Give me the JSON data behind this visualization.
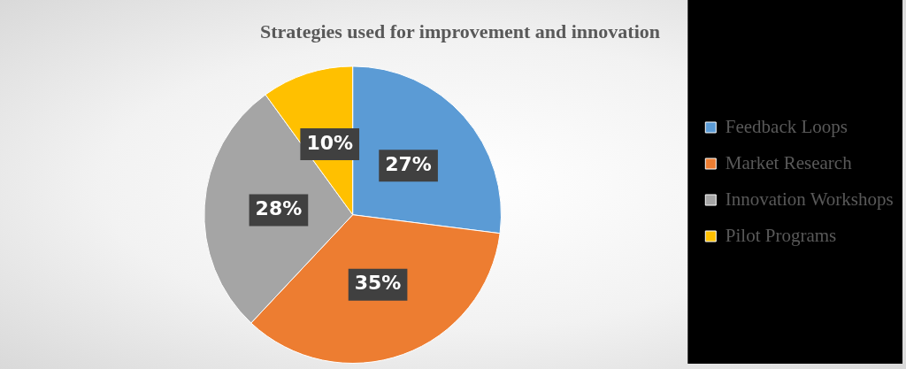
{
  "chart_data": {
    "type": "pie",
    "title": "Strategies used for improvement and innovation",
    "categories": [
      "Feedback Loops",
      "Market Research",
      "Innovation Workshops",
      "Pilot Programs"
    ],
    "values": [
      27,
      35,
      28,
      10
    ],
    "colors": [
      "#5b9bd5",
      "#ed7d31",
      "#a5a5a5",
      "#ffc000"
    ],
    "value_labels": [
      "27%",
      "35%",
      "28%",
      "10%"
    ],
    "legend": "right"
  }
}
